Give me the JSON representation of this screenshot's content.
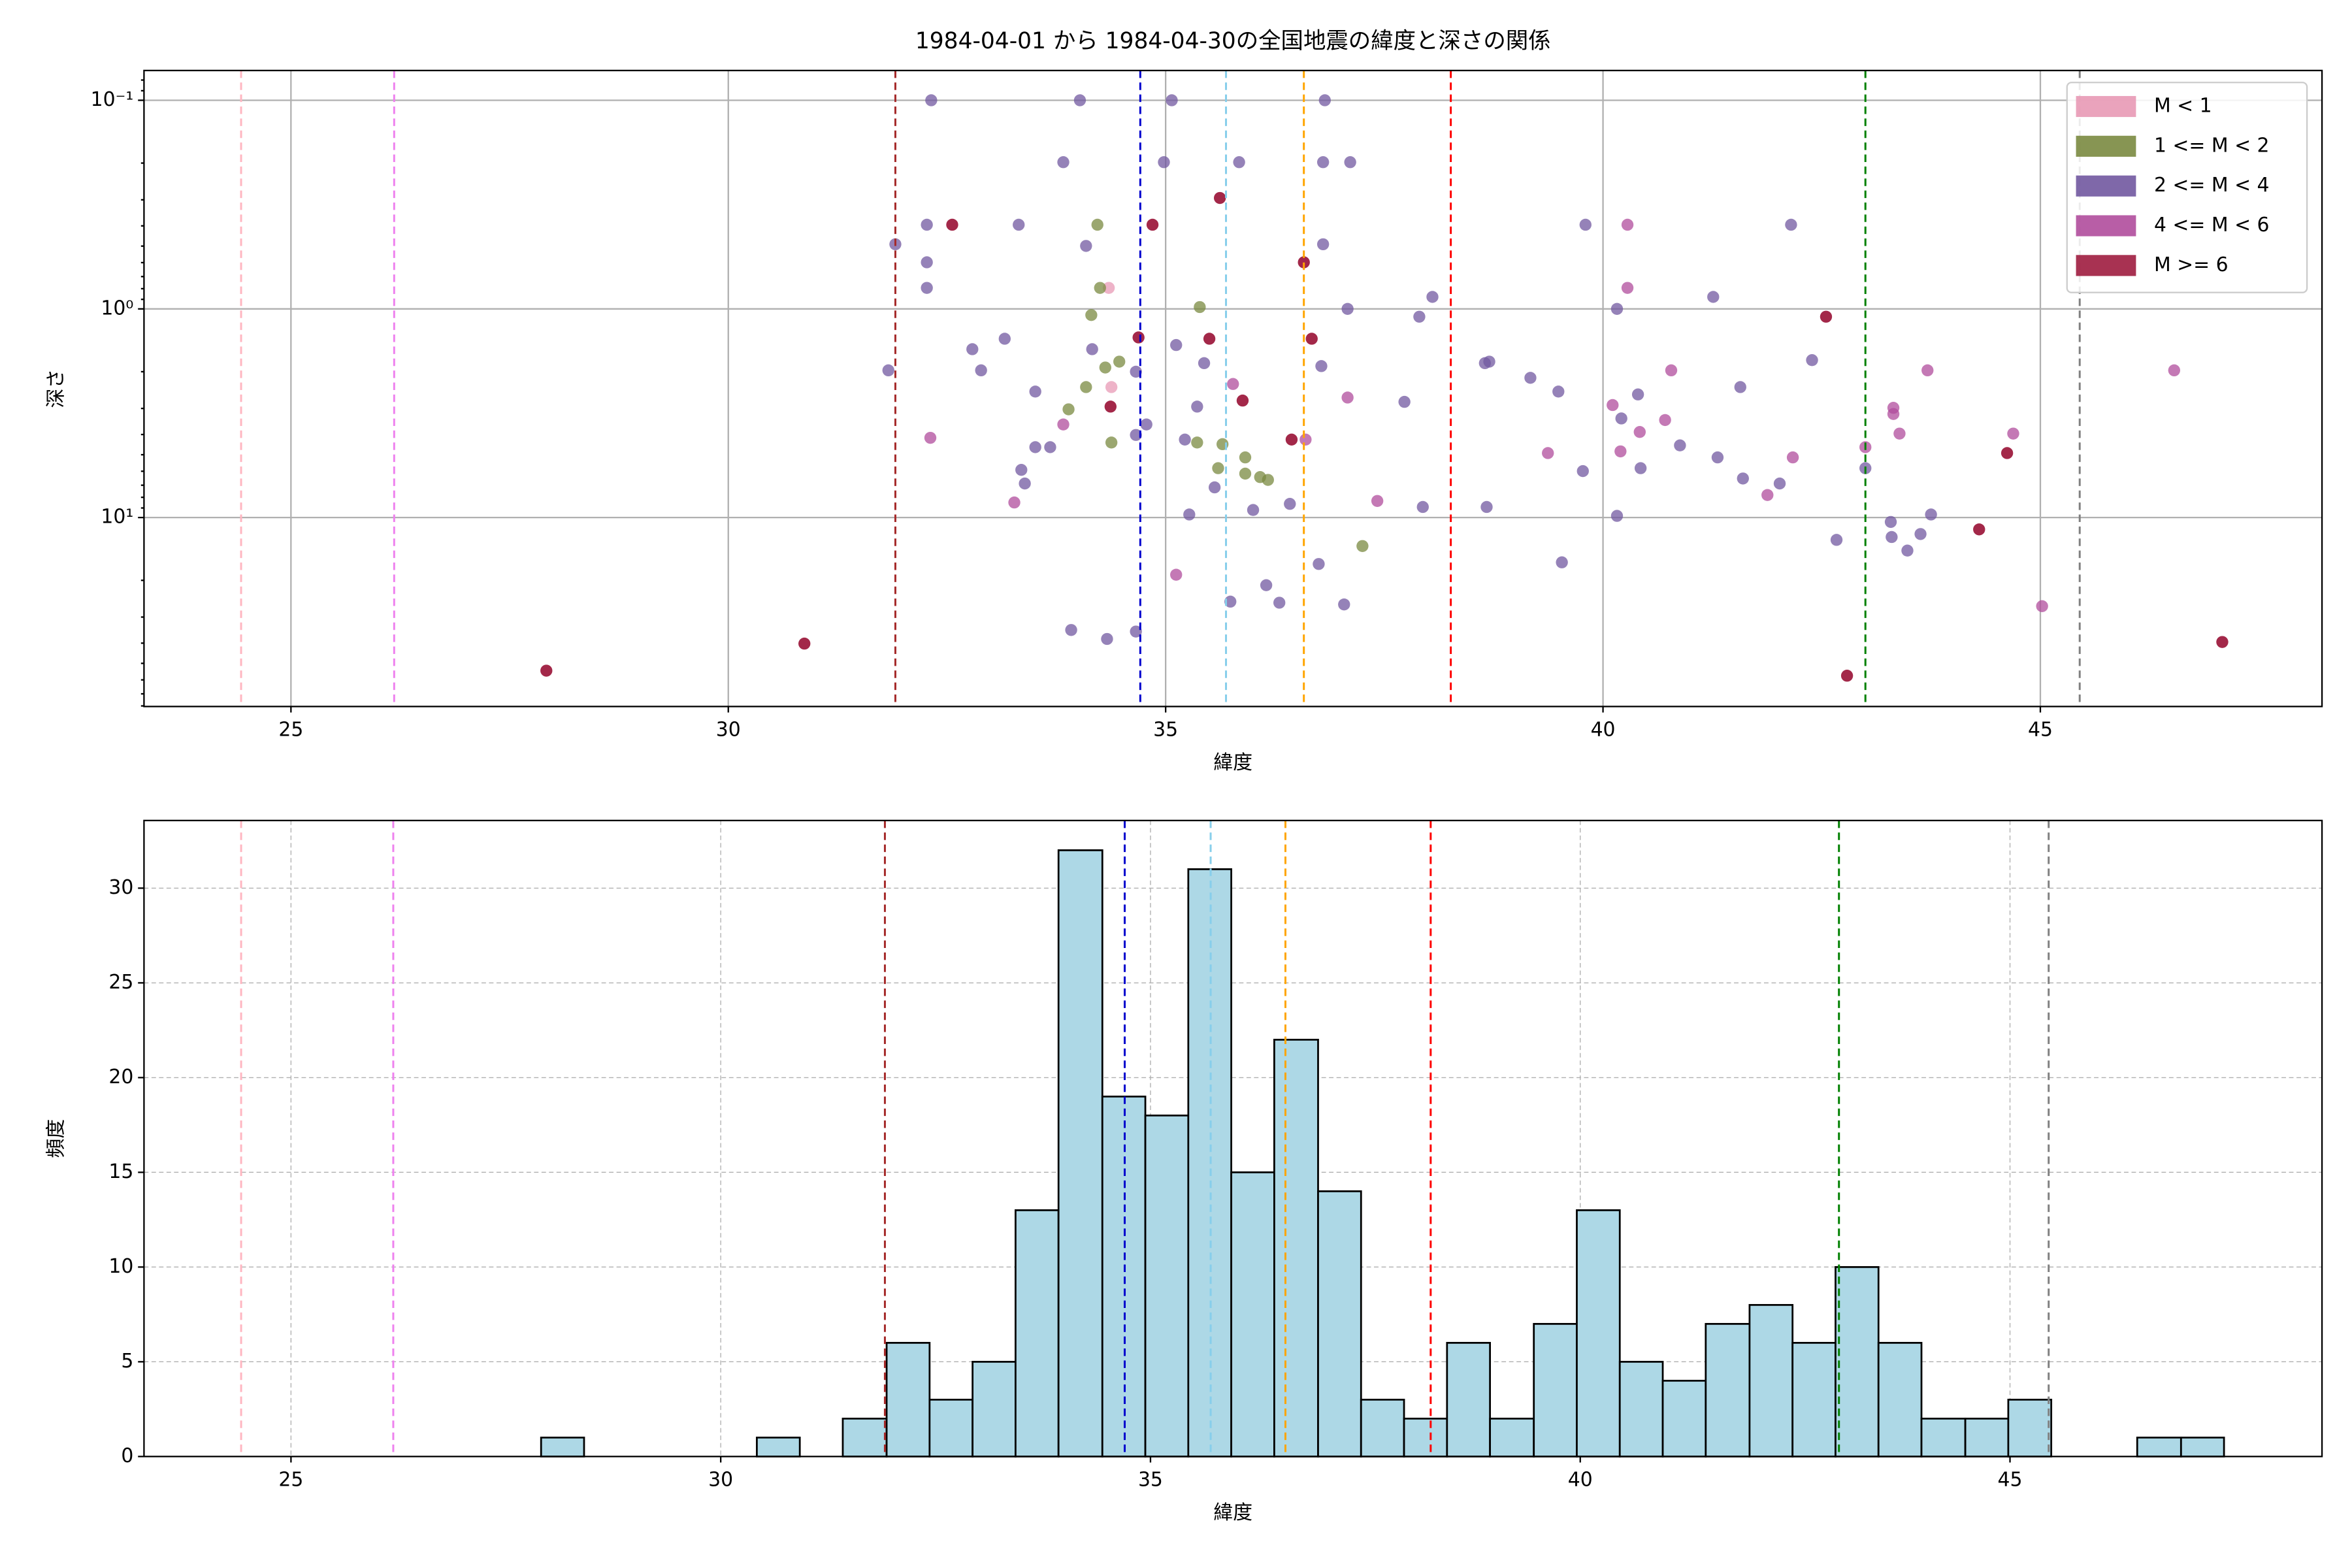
{
  "chart_data": [
    {
      "type": "scatter",
      "title": "1984-04-01 から 1984-04-30の全国地震の緯度と深さの関係",
      "xlabel": "緯度",
      "ylabel": "深さ",
      "xlim": [
        23.32,
        48.22
      ],
      "ylim": [
        80.5,
        0.072
      ],
      "yscale": "log",
      "xticks": [
        25,
        30,
        35,
        40,
        45
      ],
      "yticks": [
        {
          "value": 0.1,
          "label": "10⁻¹"
        },
        {
          "value": 1,
          "label": "10⁰"
        },
        {
          "value": 10,
          "label": "10¹"
        }
      ],
      "grid": true,
      "legend": "upper right",
      "vlines": [
        {
          "x": 24.43,
          "color": "#ffb6c1"
        },
        {
          "x": 26.18,
          "color": "#ee82ee"
        },
        {
          "x": 31.91,
          "color": "#a52a2a"
        },
        {
          "x": 34.71,
          "color": "#0000cd"
        },
        {
          "x": 35.69,
          "color": "#87ceeb"
        },
        {
          "x": 36.58,
          "color": "#ffa500"
        },
        {
          "x": 38.26,
          "color": "#ff0000"
        },
        {
          "x": 43.0,
          "color": "#008000"
        },
        {
          "x": 45.45,
          "color": "#808080"
        }
      ],
      "series": [
        {
          "name": "M < 1",
          "color": "#e899b5",
          "x": [
            34.35,
            34.38
          ],
          "values": [
            0.793,
            2.37
          ]
        },
        {
          "name": "1 <= M < 2",
          "color": "#7a8a40",
          "x": [
            33.89,
            34.09,
            34.25,
            34.31,
            34.38,
            34.47,
            35.39,
            35.36,
            35.65,
            35.91,
            35.91,
            36.08,
            36.17,
            35.6,
            37.25,
            34.22,
            34.15
          ],
          "values": [
            3.03,
            2.37,
            0.793,
            1.91,
            4.37,
            1.79,
            0.98,
            4.37,
            4.45,
            5.15,
            6.16,
            6.4,
            6.6,
            5.8,
            13.7,
            0.395,
            1.07
          ]
        },
        {
          "name": "2 <= M < 4",
          "color": "#7158a0",
          "x": [
            31.91,
            31.83,
            32.27,
            32.32,
            32.27,
            32.27,
            32.79,
            32.89,
            33.16,
            33.32,
            33.35,
            33.39,
            33.51,
            33.51,
            33.68,
            33.83,
            33.92,
            34.02,
            34.09,
            34.16,
            34.33,
            34.66,
            34.66,
            34.66,
            34.78,
            35.07,
            34.98,
            35.12,
            35.22,
            35.27,
            35.36,
            35.44,
            35.56,
            35.74,
            35.84,
            36.0,
            36.15,
            36.3,
            36.42,
            36.82,
            36.8,
            36.8,
            36.78,
            37.11,
            37.04,
            37.08,
            36.75,
            37.73,
            37.94,
            37.9,
            38.05,
            38.65,
            38.7,
            38.67,
            39.17,
            39.49,
            39.53,
            39.77,
            39.8,
            40.16,
            40.16,
            40.21,
            40.4,
            40.43,
            40.88,
            41.26,
            41.31,
            41.57,
            41.6,
            42.02,
            42.15,
            42.39,
            42.67,
            43.0,
            43.29,
            43.48,
            43.63,
            43.75,
            43.3
          ],
          "values": [
            0.49,
            1.97,
            0.395,
            0.1,
            0.598,
            0.793,
            1.56,
            1.97,
            1.39,
            0.395,
            5.91,
            6.87,
            2.49,
            4.6,
            4.6,
            0.198,
            34.6,
            0.1,
            0.499,
            1.56,
            38.2,
            35.2,
            2.0,
            4.02,
            3.58,
            0.1,
            0.198,
            1.49,
            4.23,
            9.67,
            2.94,
            1.82,
            7.17,
            25.3,
            0.198,
            9.2,
            21.1,
            25.6,
            8.6,
            0.1,
            0.198,
            0.49,
            1.88,
            0.198,
            26.1,
            1.0,
            16.7,
            2.79,
            8.9,
            1.09,
            0.876,
            1.82,
            1.79,
            8.9,
            2.14,
            2.49,
            16.4,
            5.99,
            0.395,
            1.0,
            9.82,
            3.35,
            2.57,
            5.8,
            4.51,
            0.876,
            5.15,
            2.37,
            6.5,
            6.87,
            0.395,
            1.76,
            12.8,
            5.8,
            10.5,
            14.4,
            12.0,
            9.67,
            12.4
          ]
        },
        {
          "name": "4 <= M < 6",
          "color": "#b04c9c",
          "x": [
            32.31,
            33.27,
            33.83,
            35.12,
            35.77,
            36.6,
            37.08,
            37.42,
            39.37,
            40.11,
            40.2,
            40.28,
            40.28,
            40.42,
            40.78,
            40.71,
            41.88,
            42.17,
            43.32,
            43.39,
            43.32,
            43.71,
            44.69,
            45.02,
            46.53,
            43.0
          ],
          "values": [
            4.15,
            8.47,
            3.58,
            18.8,
            2.29,
            4.23,
            2.66,
            8.33,
            4.91,
            2.89,
            4.82,
            0.395,
            0.793,
            3.89,
            1.97,
            3.41,
            7.8,
            5.15,
            3.19,
            3.96,
            2.98,
            1.97,
            3.96,
            26.6,
            1.97,
            4.6
          ]
        },
        {
          "name": "M >= 6",
          "color": "#9e1c3f",
          "x": [
            27.92,
            30.87,
            32.56,
            34.69,
            34.85,
            34.37,
            35.5,
            35.62,
            35.88,
            36.58,
            36.67,
            36.44,
            42.55,
            42.79,
            44.3,
            44.62,
            47.08
          ],
          "values": [
            54.2,
            40.2,
            0.395,
            1.37,
            0.395,
            2.94,
            1.39,
            0.294,
            2.75,
            0.598,
            1.39,
            4.23,
            1.09,
            57.3,
            11.4,
            4.91,
            39.5
          ]
        }
      ]
    },
    {
      "type": "histogram",
      "xlabel": "緯度",
      "ylabel": "頻度",
      "xlim": [
        23.29,
        48.63
      ],
      "ylim": [
        0,
        33.57
      ],
      "xticks": [
        25,
        30,
        35,
        40,
        45
      ],
      "yticks": [
        0,
        5,
        10,
        15,
        20,
        25,
        30
      ],
      "grid": true,
      "color": "#add8e6",
      "edgecolor": "#000000",
      "vlines": [
        {
          "x": 24.42,
          "color": "#ffb6c1"
        },
        {
          "x": 26.19,
          "color": "#ee82ee"
        },
        {
          "x": 31.91,
          "color": "#a52a2a"
        },
        {
          "x": 34.7,
          "color": "#0000cd"
        },
        {
          "x": 35.7,
          "color": "#87ceeb"
        },
        {
          "x": 36.57,
          "color": "#ffa500"
        },
        {
          "x": 38.26,
          "color": "#ff0000"
        },
        {
          "x": 43.01,
          "color": "#008000"
        },
        {
          "x": 45.45,
          "color": "#808080"
        }
      ],
      "bins": [
        27.91,
        28.41,
        28.91,
        29.42,
        29.92,
        30.42,
        30.92,
        31.42,
        31.93,
        32.43,
        32.93,
        33.43,
        33.93,
        34.44,
        34.94,
        35.44,
        35.94,
        36.44,
        36.95,
        37.45,
        37.95,
        38.45,
        38.95,
        39.46,
        39.96,
        40.46,
        40.96,
        41.46,
        41.97,
        42.47,
        42.97,
        43.47,
        43.97,
        44.48,
        44.98,
        45.48,
        45.98,
        46.48,
        46.99,
        47.49
      ],
      "values": [
        1,
        0,
        0,
        0,
        0,
        1,
        0,
        2,
        6,
        3,
        5,
        13,
        32,
        19,
        18,
        31,
        15,
        22,
        14,
        3,
        2,
        6,
        2,
        7,
        13,
        5,
        4,
        7,
        8,
        6,
        10,
        6,
        2,
        2,
        3,
        0,
        0,
        1,
        1
      ]
    }
  ]
}
